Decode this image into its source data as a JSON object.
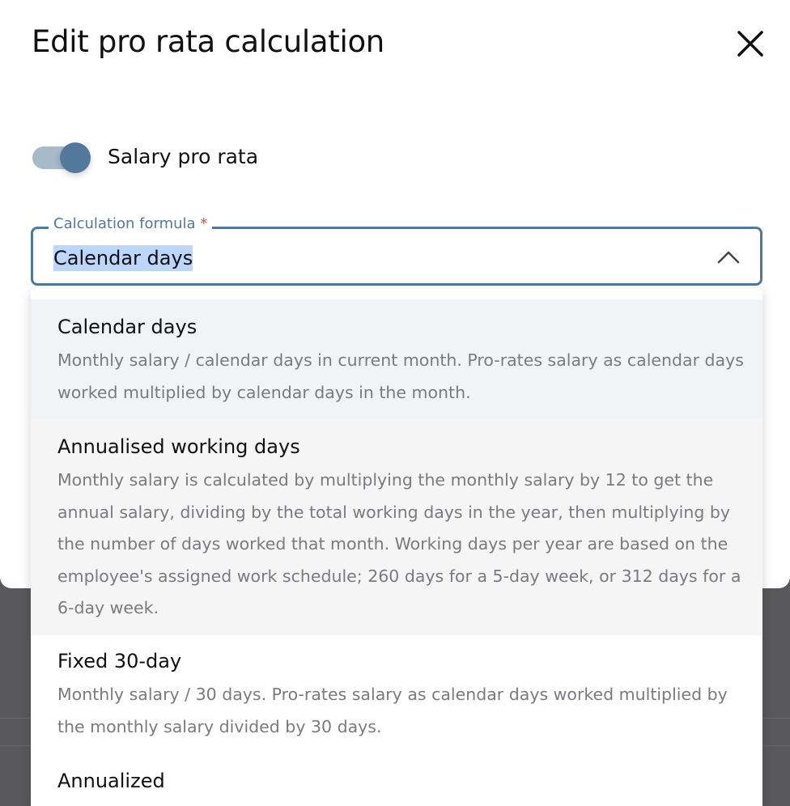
{
  "dialog": {
    "title": "Edit pro rata calculation",
    "close_icon": "close-icon"
  },
  "toggle": {
    "label": "Salary pro rata",
    "on": true,
    "color": "#52799b"
  },
  "field": {
    "label": "Calculation formula",
    "required_mark": "*",
    "value": "Calendar days",
    "icon": "chevron-up-icon"
  },
  "options": [
    {
      "title": "Calendar days",
      "description": "Monthly salary / calendar days in current month. Pro-rates salary as calendar days worked multiplied by calendar days in the month."
    },
    {
      "title": "Annualised working days",
      "description": "Monthly salary is calculated by multiplying the monthly salary by 12 to get the annual salary, dividing by the total working days in the year, then multiplying by the number of days worked that month. Working days per year are based on the employee's assigned work schedule; 260 days for a 5-day week, or 312 days for a 6-day week."
    },
    {
      "title": "Fixed 30-day",
      "description": "Monthly salary / 30 days. Pro-rates salary as calendar days worked multiplied by the monthly salary divided by 30 days."
    },
    {
      "title": "Annualized",
      "description": ""
    }
  ]
}
